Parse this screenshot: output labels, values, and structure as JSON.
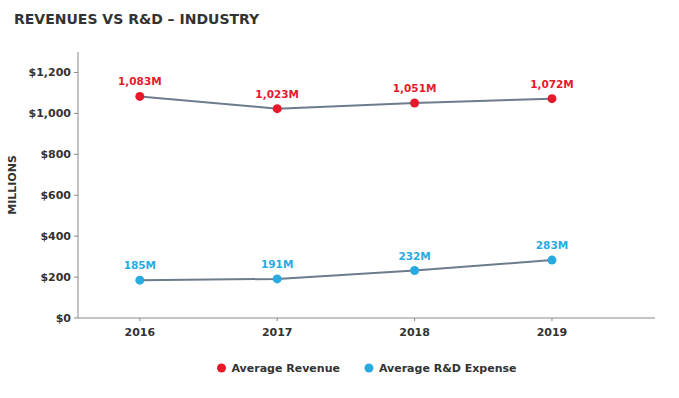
{
  "chart_data": {
    "type": "line",
    "title": "REVENUES VS R&D – INDUSTRY",
    "y_label": "MILLIONS",
    "x": [
      2016,
      2017,
      2018,
      2019
    ],
    "xlim": [
      2015.55,
      2019.75
    ],
    "xticks": [
      2016,
      2017,
      2018,
      2019
    ],
    "ylim": [
      0,
      1300
    ],
    "yticks": [
      {
        "value": 0,
        "label": "$0"
      },
      {
        "value": 200,
        "label": "$200"
      },
      {
        "value": 400,
        "label": "$400"
      },
      {
        "value": 600,
        "label": "$600"
      },
      {
        "value": 800,
        "label": "$800"
      },
      {
        "value": 1000,
        "label": "$1,000"
      },
      {
        "value": 1200,
        "label": "$1,200"
      }
    ],
    "color": "#6d7b8d",
    "marker": "circle",
    "grid": false,
    "legend": "bottom",
    "data_labels": true,
    "series": [
      {
        "name": "Average Revenue",
        "color": "#e8192c",
        "values": [
          1083,
          1023,
          1051,
          1072
        ],
        "value_labels": [
          "1,083M",
          "1,023M",
          "1,051M",
          "1,072M"
        ]
      },
      {
        "name": "Average R&D Expense",
        "color": "#29abe2",
        "values": [
          185,
          191,
          232,
          283
        ],
        "value_labels": [
          "185M",
          "191M",
          "232M",
          "283M"
        ]
      }
    ]
  }
}
